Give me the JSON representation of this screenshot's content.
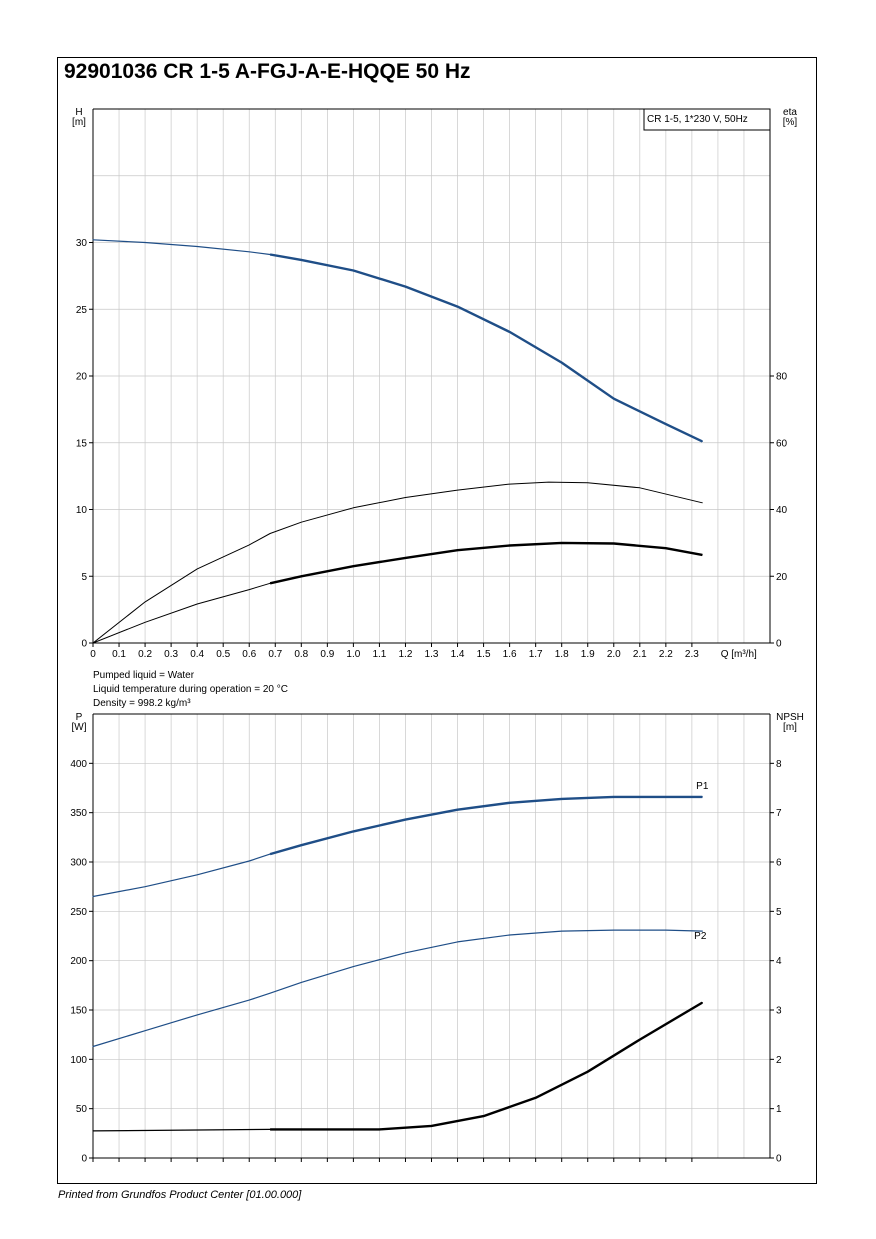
{
  "title": "92901036 CR 1-5 A-FGJ-A-E-HQQE 50 Hz",
  "footer": "Printed from Grundfos Product Center [01.00.000]",
  "liquid_info": [
    "Pumped liquid = Water",
    "Liquid temperature during operation = 20 °C",
    "Density = 998.2 kg/m³"
  ],
  "colors": {
    "blue": "#1f4e87",
    "black": "#000000",
    "grid": "#c8c8c8"
  },
  "chart_data": [
    {
      "type": "line",
      "legend_box": "CR 1-5, 1*230 V, 50Hz",
      "legend_position": "top-right",
      "grid": true,
      "x_axis": {
        "label": "Q [m³/h]",
        "range": [
          0,
          2.6
        ],
        "ticks": [
          0,
          0.1,
          0.2,
          0.3,
          0.4,
          0.5,
          0.6,
          0.7,
          0.8,
          0.9,
          1.0,
          1.1,
          1.2,
          1.3,
          1.4,
          1.5,
          1.6,
          1.7,
          1.8,
          1.9,
          2.0,
          2.1,
          2.2,
          2.3
        ],
        "tick_labels": [
          "0",
          "0.1",
          "0.2",
          "0.3",
          "0.4",
          "0.5",
          "0.6",
          "0.7",
          "0.8",
          "0.9",
          "1.0",
          "1.1",
          "1.2",
          "1.3",
          "1.4",
          "1.5",
          "1.6",
          "1.7",
          "1.8",
          "1.9",
          "2.0",
          "2.1",
          "2.2",
          "2.3"
        ]
      },
      "y_left": {
        "label_top": "H",
        "label_unit": "[m]",
        "range": [
          0,
          40
        ],
        "ticks": [
          0,
          5,
          10,
          15,
          20,
          25,
          30
        ],
        "tick_labels": [
          "0",
          "5",
          "10",
          "15",
          "20",
          "25",
          "30"
        ]
      },
      "y_right": {
        "label_top": "eta",
        "label_unit": "[%]",
        "range": [
          0,
          160
        ],
        "ticks": [
          0,
          20,
          40,
          60,
          80
        ],
        "tick_labels": [
          "0",
          "20",
          "40",
          "60",
          "80"
        ]
      },
      "series": [
        {
          "axis": "left",
          "color": "blue",
          "width": 1.2,
          "bold_from": 0.68,
          "bold_width": 2.4,
          "x": [
            0,
            0.2,
            0.4,
            0.6,
            0.68,
            0.8,
            1.0,
            1.2,
            1.4,
            1.6,
            1.8,
            2.0,
            2.2,
            2.34
          ],
          "y": [
            30.2,
            30.0,
            29.7,
            29.3,
            29.1,
            28.7,
            27.9,
            26.7,
            25.2,
            23.3,
            21.0,
            18.3,
            16.4,
            15.1
          ]
        },
        {
          "axis": "right",
          "color": "black",
          "width": 1.0,
          "x": [
            0,
            0.2,
            0.4,
            0.6,
            0.68,
            0.8,
            1.0,
            1.2,
            1.4,
            1.6,
            1.75,
            1.9,
            2.1,
            2.34
          ],
          "y": [
            0,
            12.3,
            22.2,
            29.4,
            32.8,
            36.2,
            40.5,
            43.6,
            45.8,
            47.6,
            48.2,
            48.0,
            46.5,
            42.0
          ]
        },
        {
          "axis": "right",
          "color": "black",
          "width": 1.0,
          "bold_from": 0.68,
          "bold_width": 2.4,
          "x": [
            0,
            0.2,
            0.4,
            0.6,
            0.68,
            0.8,
            1.0,
            1.2,
            1.4,
            1.6,
            1.8,
            2.0,
            2.2,
            2.34
          ],
          "y": [
            0,
            6.2,
            11.7,
            16.0,
            17.9,
            20.0,
            23.0,
            25.5,
            27.8,
            29.2,
            30.0,
            29.8,
            28.4,
            26.4
          ]
        }
      ]
    },
    {
      "type": "line",
      "grid": true,
      "x_axis": {
        "range": [
          0,
          2.6
        ],
        "ticks": [
          0,
          0.1,
          0.2,
          0.3,
          0.4,
          0.5,
          0.6,
          0.7,
          0.8,
          0.9,
          1.0,
          1.1,
          1.2,
          1.3,
          1.4,
          1.5,
          1.6,
          1.7,
          1.8,
          1.9,
          2.0,
          2.1,
          2.2,
          2.3
        ]
      },
      "y_left": {
        "label_top": "P",
        "label_unit": "[W]",
        "range": [
          0,
          450
        ],
        "ticks": [
          0,
          50,
          100,
          150,
          200,
          250,
          300,
          350,
          400
        ],
        "tick_labels": [
          "0",
          "50",
          "100",
          "150",
          "200",
          "250",
          "300",
          "350",
          "400"
        ]
      },
      "y_right": {
        "label_top": "NPSH",
        "label_unit": "[m]",
        "range": [
          0,
          9
        ],
        "ticks": [
          0,
          1,
          2,
          3,
          4,
          5,
          6,
          7,
          8
        ],
        "tick_labels": [
          "0",
          "1",
          "2",
          "3",
          "4",
          "5",
          "6",
          "7",
          "8"
        ]
      },
      "series": [
        {
          "name": "P1",
          "axis": "left",
          "color": "blue",
          "width": 1.2,
          "bold_from": 0.68,
          "bold_width": 2.4,
          "x": [
            0,
            0.2,
            0.4,
            0.6,
            0.68,
            0.8,
            1.0,
            1.2,
            1.4,
            1.6,
            1.8,
            2.0,
            2.2,
            2.34
          ],
          "y": [
            265,
            275,
            287,
            301,
            308,
            317,
            331,
            343,
            353,
            360,
            364,
            366,
            366,
            366
          ]
        },
        {
          "name": "P2",
          "axis": "left",
          "color": "blue",
          "width": 1.2,
          "x": [
            0,
            0.2,
            0.4,
            0.6,
            0.68,
            0.8,
            1.0,
            1.2,
            1.4,
            1.6,
            1.8,
            2.0,
            2.2,
            2.34
          ],
          "y": [
            113,
            129,
            145,
            160,
            167,
            178,
            194,
            208,
            219,
            226,
            230,
            231,
            231,
            230
          ]
        },
        {
          "axis": "right",
          "color": "black",
          "width": 1.2,
          "bold_from": 0.68,
          "bold_width": 2.4,
          "x": [
            0,
            0.68,
            1.1,
            1.3,
            1.5,
            1.7,
            1.9,
            2.1,
            2.34
          ],
          "y": [
            0.55,
            0.58,
            0.58,
            0.65,
            0.85,
            1.22,
            1.75,
            2.4,
            3.15
          ]
        }
      ]
    }
  ]
}
